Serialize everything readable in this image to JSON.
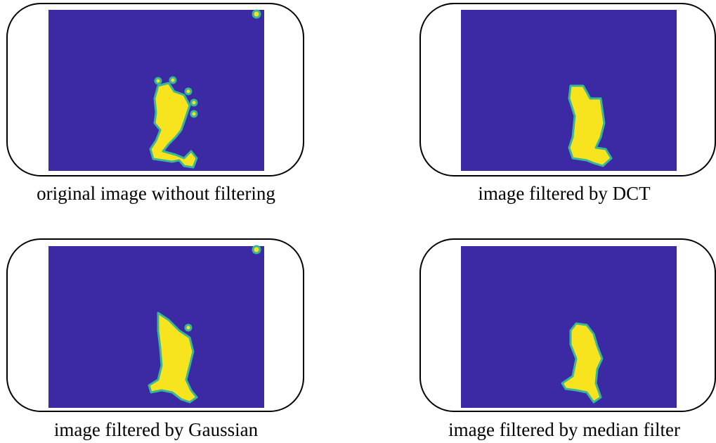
{
  "panels": [
    {
      "caption": "original image without filtering"
    },
    {
      "caption": "image filtered by DCT"
    },
    {
      "caption": "image filtered by Gaussian"
    },
    {
      "caption": "image filtered by median filter"
    }
  ]
}
